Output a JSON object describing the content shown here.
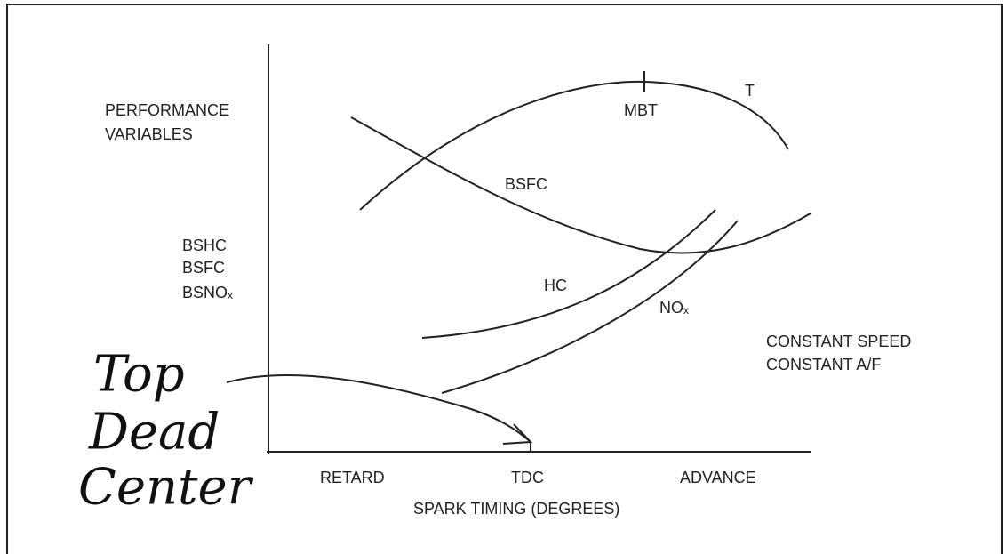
{
  "axis": {
    "y_labels": [
      "PERFORMANCE",
      "VARIABLES"
    ],
    "y_labels_lower": [
      "BSHC",
      "BSFC",
      "BSNOₓ"
    ],
    "x_labels": [
      "RETARD",
      "TDC",
      "ADVANCE"
    ],
    "x_title": "SPARK TIMING (DEGREES)"
  },
  "curves": {
    "mbt": "MBT",
    "torque": "T",
    "bsfc": "BSFC",
    "hc": "HC",
    "nox": "NOₓ"
  },
  "conditions": [
    "CONSTANT SPEED",
    "CONSTANT A/F"
  ],
  "annotation": [
    "Top",
    "Dead",
    "Center"
  ]
}
